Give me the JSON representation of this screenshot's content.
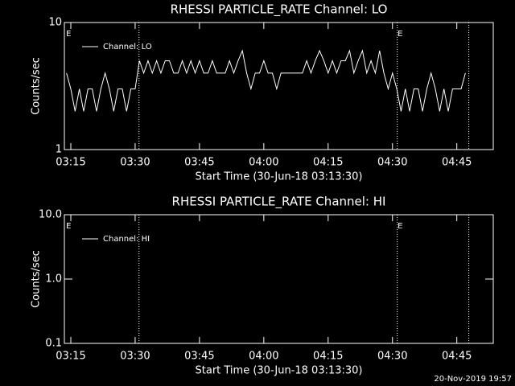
{
  "chart_data": [
    {
      "type": "line",
      "title": "RHESSI PARTICLE_RATE Channel: LO",
      "xlabel": "Start Time (30-Jun-18 03:13:30)",
      "ylabel": "Counts/sec",
      "log_y": true,
      "xlim": [
        13.5,
        113.5
      ],
      "ylim": [
        1,
        10
      ],
      "xticks": [
        {
          "value": 15,
          "label": "03:15"
        },
        {
          "value": 30,
          "label": "03:30"
        },
        {
          "value": 45,
          "label": "03:45"
        },
        {
          "value": 60,
          "label": "04:00"
        },
        {
          "value": 75,
          "label": "04:15"
        },
        {
          "value": 90,
          "label": "04:30"
        },
        {
          "value": 105,
          "label": "04:45"
        }
      ],
      "yticks": [
        1,
        10
      ],
      "event_lines": [
        30.9,
        91.1,
        107.8
      ],
      "annotations": [
        {
          "text": "E",
          "x": 14.5
        },
        {
          "text": "E",
          "x": 91.8
        }
      ],
      "legend": "upper left",
      "x": [
        14,
        15,
        16,
        17,
        18,
        19,
        20,
        21,
        22,
        23,
        24,
        25,
        26,
        27,
        28,
        29,
        30,
        31,
        32,
        33,
        34,
        35,
        36,
        37,
        38,
        39,
        40,
        41,
        42,
        43,
        44,
        45,
        46,
        47,
        48,
        49,
        50,
        51,
        52,
        53,
        54,
        55,
        56,
        57,
        58,
        59,
        60,
        61,
        62,
        63,
        64,
        65,
        66,
        67,
        68,
        69,
        70,
        71,
        72,
        73,
        74,
        75,
        76,
        77,
        78,
        79,
        80,
        81,
        82,
        83,
        84,
        85,
        86,
        87,
        88,
        89,
        90,
        91,
        92,
        93,
        94,
        95,
        96,
        97,
        98,
        99,
        100,
        101,
        102,
        103,
        104,
        105,
        106,
        107
      ],
      "series": [
        {
          "name": "Channel: LO",
          "color": "#ffffff",
          "values": [
            4,
            3,
            2,
            3,
            2,
            3,
            3,
            2,
            3,
            4,
            3,
            2,
            3,
            3,
            2,
            3,
            3,
            5,
            4,
            5,
            4,
            5,
            4,
            5,
            5,
            4,
            4,
            5,
            4,
            5,
            4,
            5,
            4,
            4,
            5,
            4,
            4,
            4,
            5,
            4,
            5,
            6,
            4,
            3,
            4,
            4,
            5,
            4,
            4,
            3,
            4,
            4,
            4,
            4,
            4,
            4,
            5,
            4,
            5,
            6,
            5,
            4,
            5,
            4,
            5,
            5,
            6,
            4,
            5,
            6,
            4,
            5,
            4,
            6,
            4,
            3,
            4,
            3,
            2,
            3,
            2,
            3,
            3,
            2,
            3,
            4,
            3,
            2,
            3,
            2,
            3,
            3,
            3,
            4
          ]
        }
      ]
    },
    {
      "type": "line",
      "title": "RHESSI PARTICLE_RATE Channel: HI",
      "xlabel": "Start Time (30-Jun-18 03:13:30)",
      "ylabel": "Counts/sec",
      "log_y": true,
      "xlim": [
        13.5,
        113.5
      ],
      "ylim": [
        0.1,
        10
      ],
      "xticks": [
        {
          "value": 15,
          "label": "03:15"
        },
        {
          "value": 30,
          "label": "03:30"
        },
        {
          "value": 45,
          "label": "03:45"
        },
        {
          "value": 60,
          "label": "04:00"
        },
        {
          "value": 75,
          "label": "04:15"
        },
        {
          "value": 90,
          "label": "04:30"
        },
        {
          "value": 105,
          "label": "04:45"
        }
      ],
      "yticks": [
        0.1,
        {
          "value": 1,
          "label": "1.0"
        },
        {
          "value": 10,
          "label": "10.0"
        }
      ],
      "event_lines": [
        30.9,
        91.1,
        107.8
      ],
      "annotations": [
        {
          "text": "E",
          "x": 14.5
        },
        {
          "text": "E",
          "x": 91.8
        }
      ],
      "legend": "upper left",
      "x": [],
      "series": [
        {
          "name": "Channel: HI",
          "color": "#ffffff",
          "values": []
        }
      ]
    }
  ],
  "footer": "20-Nov-2019 19:57"
}
